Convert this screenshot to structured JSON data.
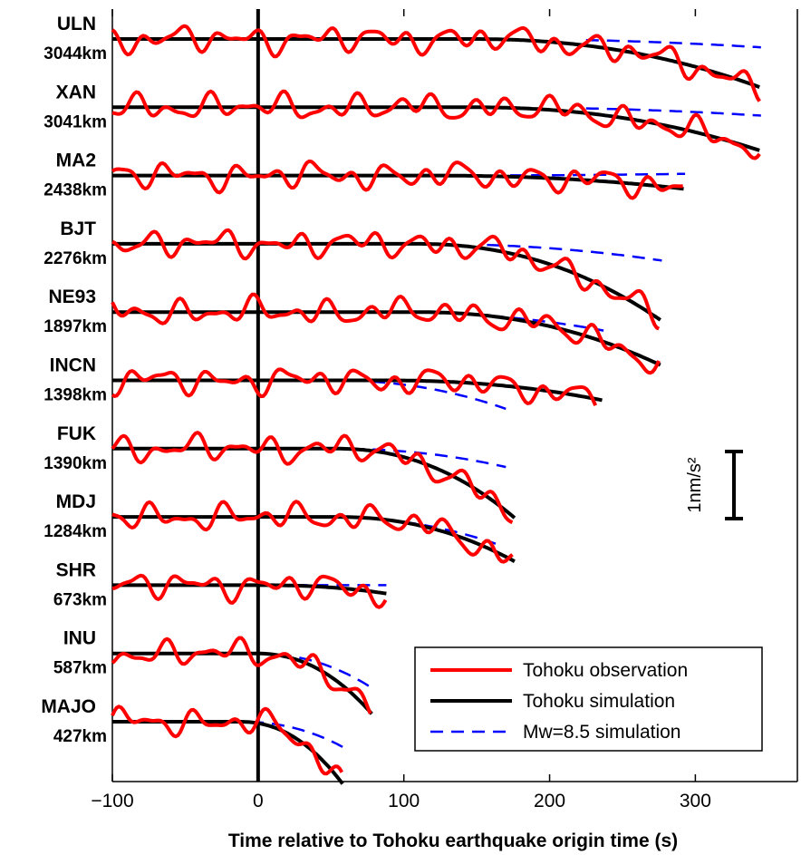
{
  "chart_data": {
    "type": "line",
    "xlabel": "Time relative to Tohoku earthquake origin time (s)",
    "xlim": [
      -100,
      370
    ],
    "x_ticks": [
      -100,
      0,
      100,
      200,
      300
    ],
    "x_tick_labels": [
      "−100",
      "0",
      "100",
      "200",
      "300"
    ],
    "origin_marker_x": 0,
    "scale_bar_label": "1nm/s²",
    "scale_bar_value": 1,
    "legend": {
      "position": "bottom-right",
      "entries": [
        {
          "label": "Tohoku observation",
          "color": "#ff0000",
          "style": "solid"
        },
        {
          "label": "Tohoku simulation",
          "color": "#000000",
          "style": "solid"
        },
        {
          "label": "Mw=8.5 simulation",
          "color": "#0000ff",
          "style": "dashed"
        }
      ]
    },
    "colors": {
      "observation": "#ff0000",
      "tohoku_sim": "#000000",
      "mw85_sim": "#0000ff"
    },
    "stations": [
      {
        "name": "ULN",
        "distance": "3044km",
        "distance_km": 3044,
        "end_obs": 345,
        "end_sim": 345,
        "end_mw": 345,
        "sim_drop": -1.45,
        "mw_drop": -0.25,
        "obs_seed": 1
      },
      {
        "name": "XAN",
        "distance": "3041km",
        "distance_km": 3041,
        "end_obs": 345,
        "end_sim": 345,
        "end_mw": 345,
        "sim_drop": -1.3,
        "mw_drop": -0.25,
        "obs_seed": 2
      },
      {
        "name": "MA2",
        "distance": "2438km",
        "distance_km": 2438,
        "end_obs": 292,
        "end_sim": 293,
        "end_mw": 293,
        "sim_drop": -0.4,
        "mw_drop": 0.05,
        "obs_seed": 3
      },
      {
        "name": "BJT",
        "distance": "2276km",
        "distance_km": 2276,
        "end_obs": 275,
        "end_sim": 277,
        "end_mw": 277,
        "sim_drop": -2.3,
        "mw_drop": -0.5,
        "obs_seed": 4
      },
      {
        "name": "NE93",
        "distance": "1897km",
        "distance_km": 1897,
        "end_obs": 275,
        "end_sim": 277,
        "end_mw": 237,
        "sim_drop": -1.6,
        "mw_drop": -0.55,
        "obs_seed": 5
      },
      {
        "name": "INCN",
        "distance": "1398km",
        "distance_km": 1398,
        "end_obs": 232,
        "end_sim": 237,
        "end_mw": 170,
        "sim_drop": -0.6,
        "mw_drop": -0.85,
        "obs_seed": 6
      },
      {
        "name": "FUK",
        "distance": "1390km",
        "distance_km": 1390,
        "end_obs": 175,
        "end_sim": 177,
        "end_mw": 170,
        "sim_drop": -2.1,
        "mw_drop": -0.55,
        "obs_seed": 7
      },
      {
        "name": "MDJ",
        "distance": "1284km",
        "distance_km": 1284,
        "end_obs": 175,
        "end_sim": 177,
        "end_mw": 163,
        "sim_drop": -1.35,
        "mw_drop": -0.8,
        "obs_seed": 8
      },
      {
        "name": "SHR",
        "distance": "673km",
        "distance_km": 673,
        "end_obs": 88,
        "end_sim": 88,
        "end_mw": 88,
        "sim_drop": -0.25,
        "mw_drop": 0,
        "obs_seed": 9
      },
      {
        "name": "INU",
        "distance": "587km",
        "distance_km": 587,
        "end_obs": 77,
        "end_sim": 78,
        "end_mw": 77,
        "sim_drop": -1.8,
        "mw_drop": -1.0,
        "obs_seed": 10
      },
      {
        "name": "MAJO",
        "distance": "427km",
        "distance_km": 427,
        "end_obs": 58,
        "end_sim": 58,
        "end_mw": 58,
        "sim_drop": -1.85,
        "mw_drop": -0.75,
        "obs_seed": 11
      }
    ]
  }
}
